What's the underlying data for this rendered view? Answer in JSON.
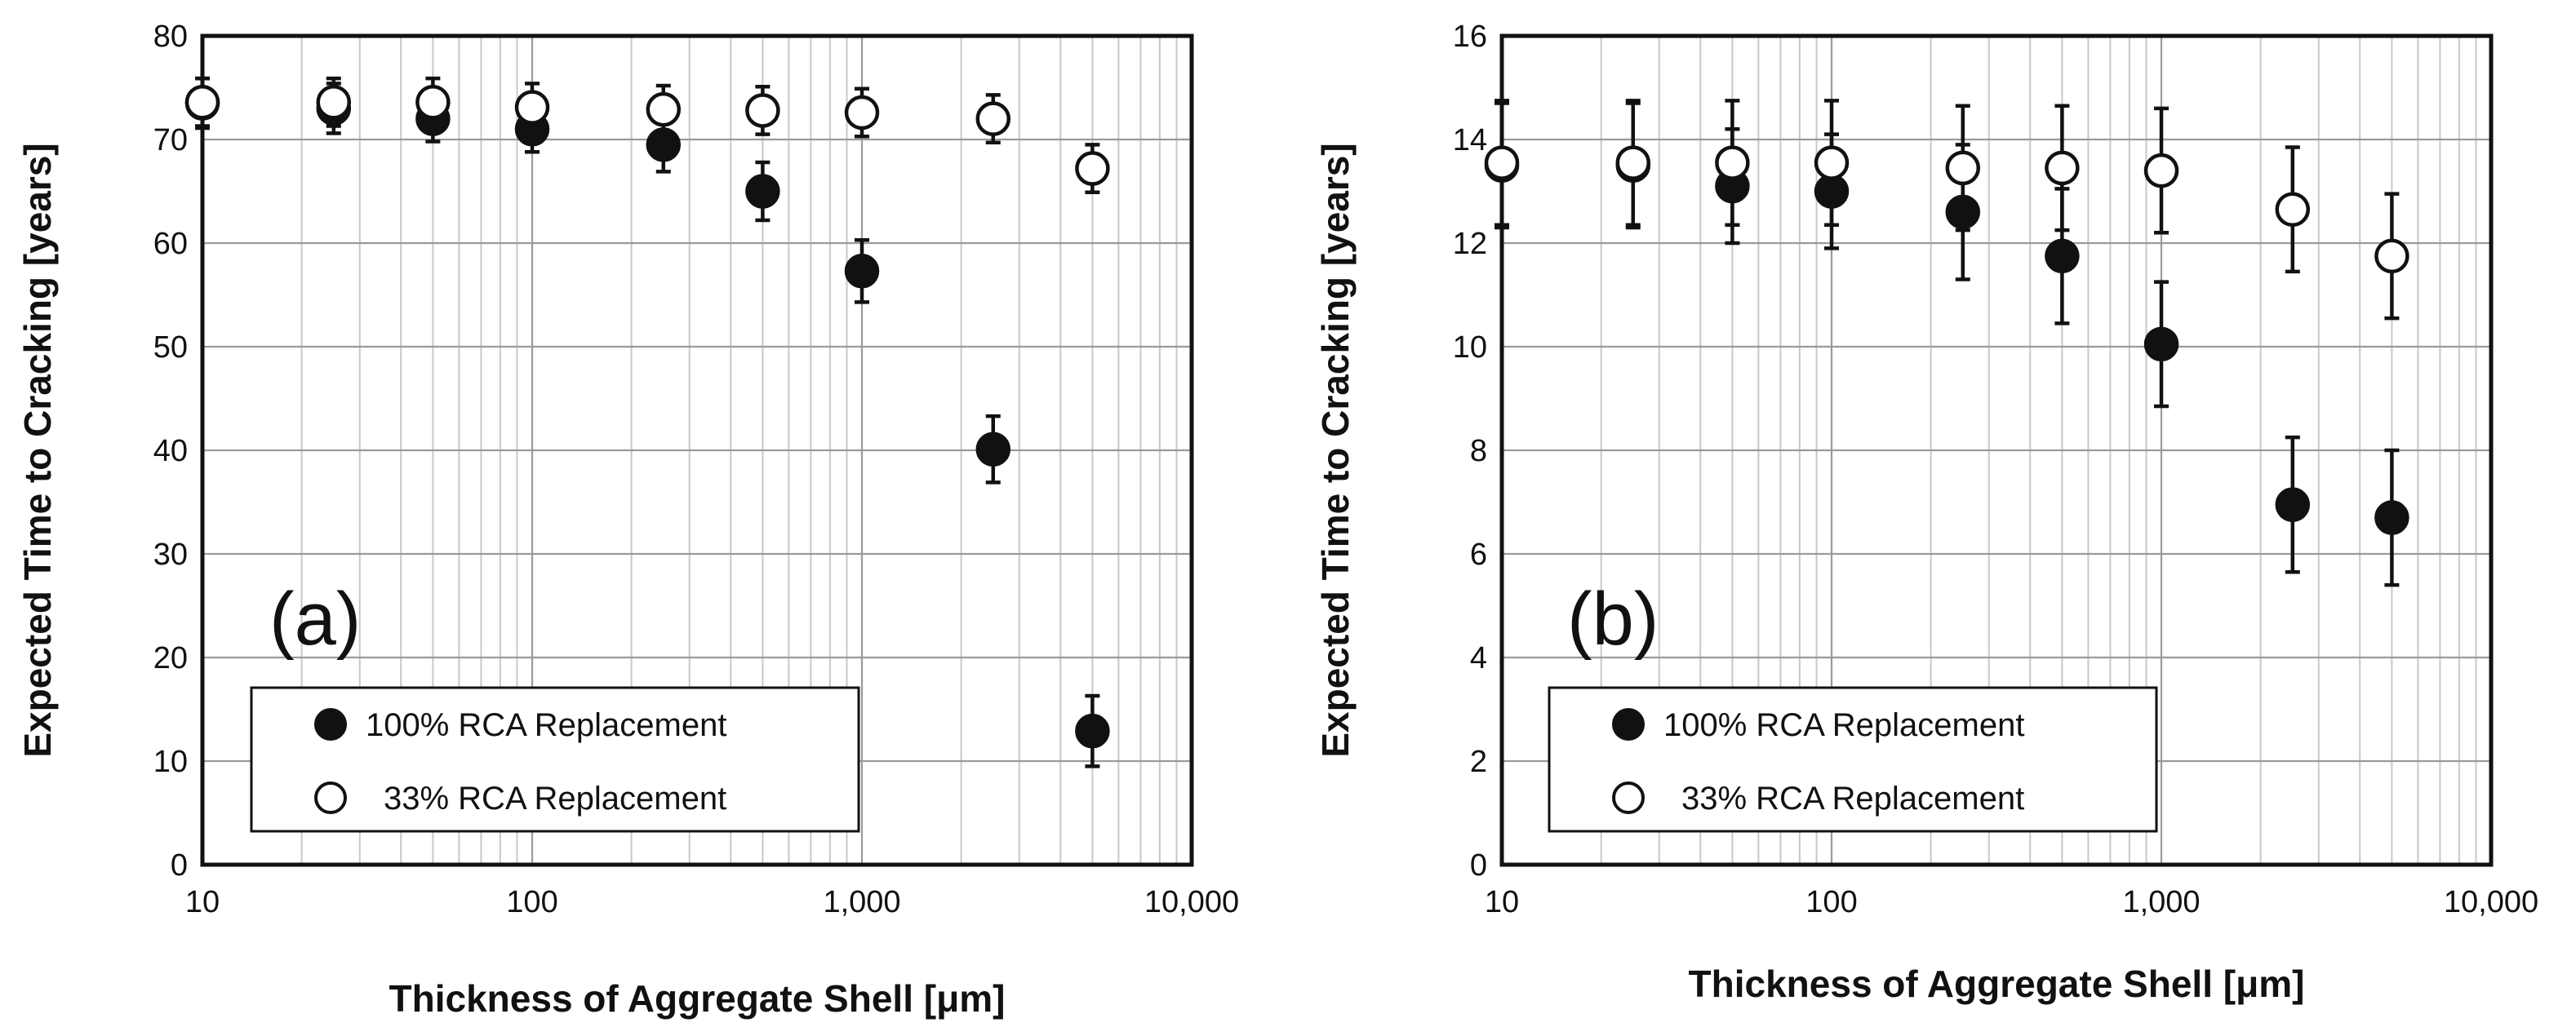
{
  "chart_data": [
    {
      "type": "scatter",
      "panel_label": "(a)",
      "xscale": "log",
      "xlim": [
        10,
        10000
      ],
      "ylim": [
        0,
        80
      ],
      "xticks": [
        10,
        100,
        1000,
        10000
      ],
      "xtick_labels": [
        "10",
        "100",
        "1,000",
        "10,000"
      ],
      "yticks": [
        0,
        10,
        20,
        30,
        40,
        50,
        60,
        70,
        80
      ],
      "ytick_labels": [
        "0",
        "10",
        "20",
        "30",
        "40",
        "50",
        "60",
        "70",
        "80"
      ],
      "xlabel": "Thickness of Aggregate Shell [μm]",
      "ylabel": "Expected Time to Cracking [years]",
      "grid": true,
      "legend_position": "bottom-left",
      "series": [
        {
          "name": "100% RCA Replacement",
          "marker": "filled-circle",
          "x": [
            10,
            25,
            50,
            100,
            250,
            500,
            1000,
            2500,
            5000
          ],
          "y": [
            73.5,
            73,
            72,
            71,
            69.5,
            65,
            57.3,
            40.1,
            12.9
          ],
          "err": [
            2.4,
            2.4,
            2.2,
            2.2,
            2.6,
            2.8,
            3,
            3.2,
            3.4
          ]
        },
        {
          "name": "33% RCA Replacement",
          "marker": "open-circle",
          "x": [
            10,
            25,
            50,
            100,
            250,
            500,
            1000,
            2500,
            5000
          ],
          "y": [
            73.6,
            73.6,
            73.6,
            73.1,
            72.9,
            72.8,
            72.6,
            72,
            67.2
          ],
          "err": [
            2.3,
            2.3,
            2.3,
            2.3,
            2.3,
            2.3,
            2.3,
            2.3,
            2.3
          ]
        }
      ]
    },
    {
      "type": "scatter",
      "panel_label": "(b)",
      "xscale": "log",
      "xlim": [
        10,
        10000
      ],
      "ylim": [
        0,
        16
      ],
      "xticks": [
        10,
        100,
        1000,
        10000
      ],
      "xtick_labels": [
        "10",
        "100",
        "1,000",
        "10,000"
      ],
      "yticks": [
        0,
        2,
        4,
        6,
        8,
        10,
        12,
        14,
        16
      ],
      "ytick_labels": [
        "0",
        "2",
        "4",
        "6",
        "8",
        "10",
        "12",
        "14",
        "16"
      ],
      "xlabel": "Thickness of Aggregate Shell [μm]",
      "ylabel": "Expected Time to Cracking [years]",
      "grid": true,
      "legend_position": "bottom-left",
      "series": [
        {
          "name": "100% RCA Replacement",
          "marker": "filled-circle",
          "x": [
            10,
            25,
            50,
            100,
            250,
            500,
            1000,
            2500,
            5000
          ],
          "y": [
            13.5,
            13.5,
            13.1,
            13,
            12.6,
            11.75,
            10.05,
            6.95,
            6.7
          ],
          "err": [
            1.2,
            1.2,
            1.1,
            1.1,
            1.3,
            1.3,
            1.2,
            1.3,
            1.3
          ]
        },
        {
          "name": "33% RCA Replacement",
          "marker": "open-circle",
          "x": [
            10,
            25,
            50,
            100,
            250,
            500,
            1000,
            2500,
            5000
          ],
          "y": [
            13.55,
            13.55,
            13.55,
            13.55,
            13.45,
            13.45,
            13.4,
            12.65,
            11.75
          ],
          "err": [
            1.2,
            1.2,
            1.2,
            1.2,
            1.2,
            1.2,
            1.2,
            1.2,
            1.2
          ]
        }
      ]
    }
  ]
}
